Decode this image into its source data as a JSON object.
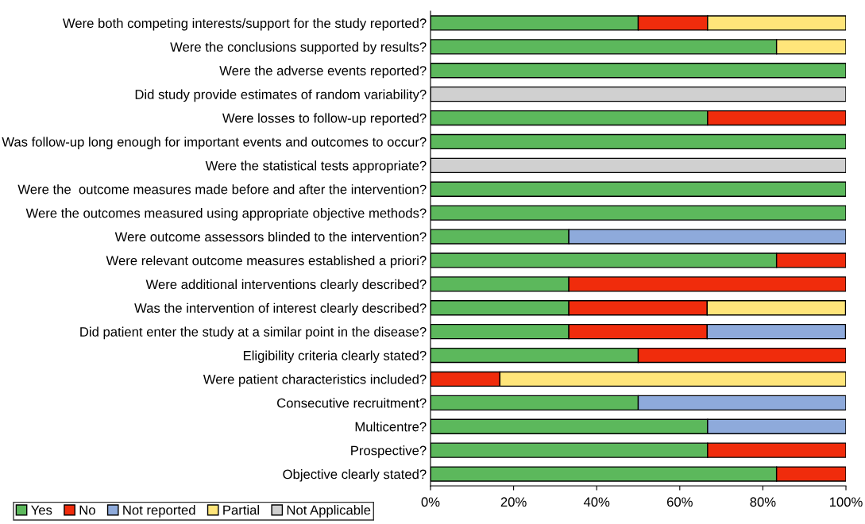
{
  "chart_data": {
    "type": "bar",
    "orientation": "horizontal",
    "stacked": true,
    "categories": [
      "Were both competing interests/support for the study reported?",
      "Were the conclusions supported by results?",
      "Were the adverse events reported?",
      "Did study provide estimates of random variability?",
      "Were losses to follow-up reported?",
      "Was follow-up long enough for important events and outcomes to occur?",
      "Were the statistical tests appropriate?",
      "Were the  outcome measures made before and after the intervention?",
      "Were the outcomes measured using appropriate objective methods?",
      "Were outcome assessors blinded to the intervention?",
      "Were relevant outcome measures established a priori?",
      "Were additional interventions clearly described?",
      "Was the intervention of interest clearly described?",
      "Did patient enter the study at a similar point in the disease?",
      "Eligibility criteria clearly stated?",
      "Were patient characteristics included?",
      "Consecutive recruitment?",
      "Multicentre?",
      "Prospective?",
      "Objective clearly stated?"
    ],
    "series": [
      {
        "name": "Yes",
        "color": "#5cb85c",
        "values": [
          50,
          83.3,
          100,
          null,
          66.7,
          100,
          null,
          100,
          100,
          33.3,
          83.3,
          33.3,
          33.3,
          33.3,
          50,
          null,
          50,
          66.7,
          66.7,
          83.3
        ]
      },
      {
        "name": "No",
        "color": "#f02c0c",
        "values": [
          16.7,
          null,
          null,
          null,
          33.3,
          null,
          null,
          null,
          null,
          null,
          16.7,
          66.7,
          33.3,
          33.3,
          50,
          16.7,
          null,
          null,
          33.3,
          16.7
        ]
      },
      {
        "name": "Not reported",
        "color": "#8eaadb",
        "values": [
          null,
          null,
          null,
          null,
          null,
          null,
          null,
          null,
          null,
          66.7,
          null,
          null,
          null,
          33.3,
          null,
          null,
          50,
          33.3,
          null,
          null
        ]
      },
      {
        "name": "Partial",
        "color": "#ffe57a",
        "values": [
          33.3,
          16.7,
          null,
          null,
          null,
          null,
          null,
          null,
          null,
          null,
          null,
          null,
          33.3,
          null,
          null,
          83.3,
          null,
          null,
          null,
          null
        ]
      },
      {
        "name": "Not Applicable",
        "color": "#d0d0d0",
        "values": [
          null,
          null,
          null,
          100,
          null,
          null,
          100,
          null,
          null,
          null,
          null,
          null,
          null,
          null,
          null,
          null,
          null,
          null,
          null,
          null
        ]
      }
    ],
    "xlim": [
      0,
      100
    ],
    "xticks": [
      {
        "value": 0,
        "label": "0%"
      },
      {
        "value": 20,
        "label": "20%"
      },
      {
        "value": 40,
        "label": "40%"
      },
      {
        "value": 60,
        "label": "60%"
      },
      {
        "value": 80,
        "label": "80%"
      },
      {
        "value": 100,
        "label": "100%"
      }
    ],
    "grid": false,
    "legend": "bottom left"
  }
}
